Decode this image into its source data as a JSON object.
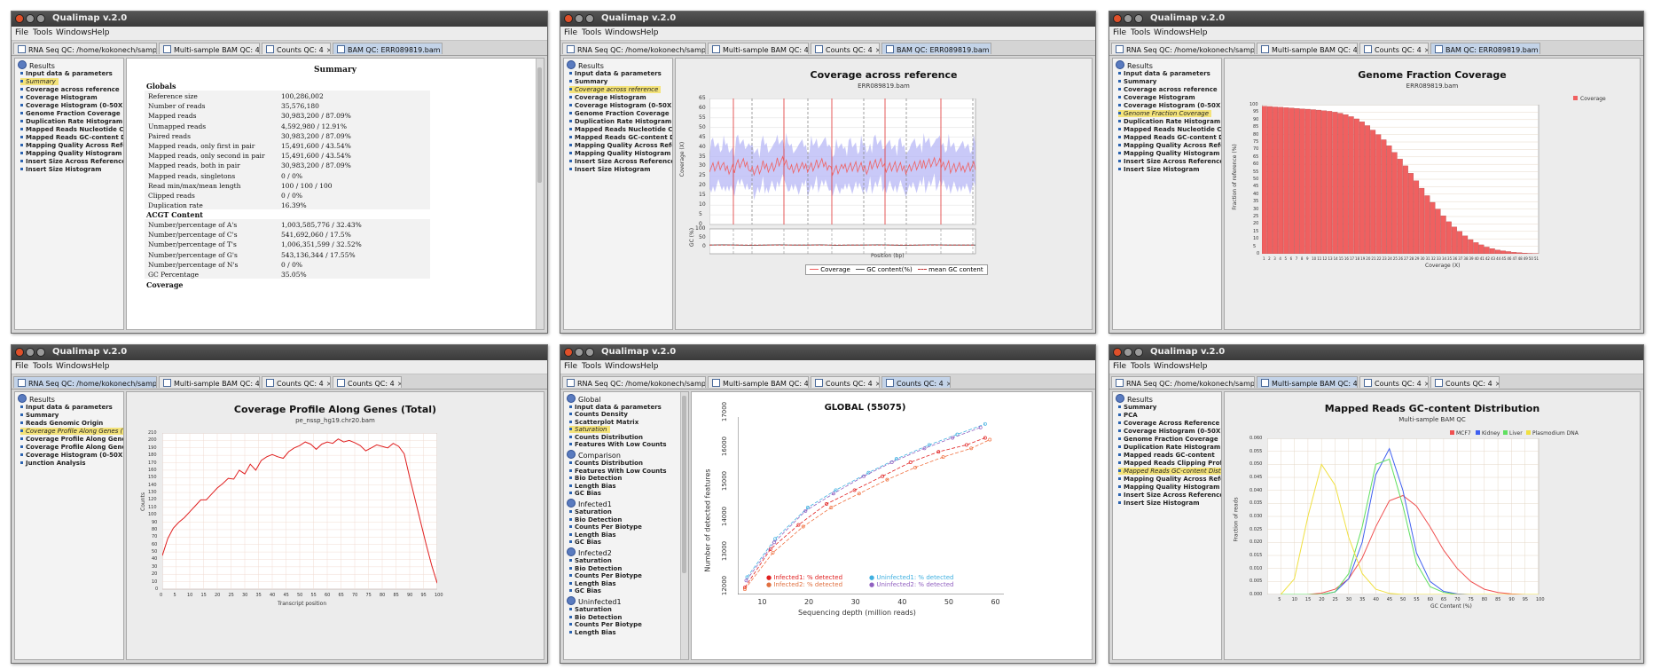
{
  "app_title": "Qualimap v.2.0",
  "menu": [
    "File",
    "Tools",
    "Windows",
    "Help"
  ],
  "colors": {
    "coverage_red": "#f06060",
    "band_blue": "#b7b7f5",
    "highlight": "#f4e37a",
    "mcf7": "#f05050",
    "kidney": "#4060f0",
    "liver": "#60e060",
    "plasmodium": "#f0e040",
    "infected1": "#e02020",
    "infected2": "#f07040",
    "uninfected1": "#40b0e0",
    "uninfected2": "#9060c0"
  },
  "w1": {
    "tabs": [
      "RNA Seq QC: /home/kokonech/sampl...",
      "Multi-sample BAM QC: 4",
      "Counts QC: 4",
      "BAM QC: ERR089819.bam"
    ],
    "sidebar": {
      "heading": "Results",
      "items": [
        "Input data & parameters",
        "Summary",
        "Coverage across reference",
        "Coverage Histogram",
        "Coverage Histogram (0-50X)",
        "Genome Fraction Coverage",
        "Duplication Rate Histogram",
        "Mapped Reads Nucleotide Content",
        "Mapped Reads GC-content Distributi",
        "Mapping Quality Across Reference",
        "Mapping Quality Histogram",
        "Insert Size Across Reference",
        "Insert Size Histogram"
      ]
    },
    "summary": {
      "title": "Summary",
      "globals_label": "Globals",
      "globals": [
        [
          "Reference size",
          "100,286,002"
        ],
        [
          "Number of reads",
          "35,576,180"
        ],
        [
          "Mapped reads",
          "30,983,200 / 87.09%"
        ],
        [
          "Unmapped reads",
          "4,592,980 / 12.91%"
        ],
        [
          "Paired reads",
          "30,983,200 / 87.09%"
        ],
        [
          "Mapped reads, only first in pair",
          "15,491,600 / 43.54%"
        ],
        [
          "Mapped reads, only second in pair",
          "15,491,600 / 43.54%"
        ],
        [
          "Mapped reads, both in pair",
          "30,983,200 / 87.09%"
        ],
        [
          "Mapped reads, singletons",
          "0 / 0%"
        ],
        [
          "Read min/max/mean length",
          "100 / 100 / 100"
        ],
        [
          "Clipped reads",
          "0 / 0%"
        ],
        [
          "Duplication rate",
          "16.39%"
        ]
      ],
      "acgt_label": "ACGT Content",
      "acgt": [
        [
          "Number/percentage of A's",
          "1,003,585,776 / 32.43%"
        ],
        [
          "Number/percentage of C's",
          "541,692,060 / 17.5%"
        ],
        [
          "Number/percentage of T's",
          "1,006,351,599 / 32.52%"
        ],
        [
          "Number/percentage of G's",
          "543,136,344 / 17.55%"
        ],
        [
          "Number/percentage of N's",
          "0 / 0%"
        ],
        [
          "GC Percentage",
          "35.05%"
        ]
      ],
      "coverage_label": "Coverage"
    }
  },
  "w2": {
    "tabs": [
      "RNA Seq QC: /home/kokonech/sampl...",
      "Multi-sample BAM QC: 4",
      "Counts QC: 4",
      "BAM QC: ERR089819.bam"
    ],
    "sidebar": {
      "heading": "Results",
      "items": [
        "Input data & parameters",
        "Summary",
        "Coverage across reference",
        "Coverage Histogram",
        "Coverage Histogram (0-50X)",
        "Genome Fraction Coverage",
        "Duplication Rate Histogram",
        "Mapped Reads Nucleotide Content",
        "Mapped Reads GC-content Distributi",
        "Mapping Quality Across Reference",
        "Mapping Quality Histogram",
        "Insert Size Across Reference",
        "Insert Size Histogram"
      ]
    },
    "chart": {
      "title": "Coverage across reference",
      "subtitle": "ERR089819.bam",
      "ylabel": "Coverage (X)",
      "ylabel2": "GC (%)",
      "xlabel": "Position (bp)",
      "yticks": [
        "65",
        "60",
        "55",
        "50",
        "45",
        "40",
        "35",
        "30",
        "25",
        "20",
        "15",
        "10",
        "5",
        "0"
      ],
      "y2ticks": [
        "100",
        "50",
        "0"
      ],
      "legend": [
        "Coverage",
        "GC content(%)",
        "mean GC content"
      ]
    }
  },
  "w3": {
    "tabs": [
      "RNA Seq QC: /home/kokonech/sampl...",
      "Multi-sample BAM QC: 4",
      "Counts QC: 4",
      "BAM QC: ERR089819.bam"
    ],
    "sidebar": {
      "heading": "Results",
      "items": [
        "Input data & parameters",
        "Summary",
        "Coverage across reference",
        "Coverage Histogram",
        "Coverage Histogram (0-50X)",
        "Genome Fraction Coverage",
        "Duplication Rate Histogram",
        "Mapped Reads Nucleotide Content",
        "Mapped Reads GC-content Distributi",
        "Mapping Quality Across Reference",
        "Mapping Quality Histogram",
        "Insert Size Across Reference",
        "Insert Size Histogram"
      ]
    },
    "chart": {
      "title": "Genome Fraction Coverage",
      "subtitle": "ERR089819.bam",
      "ylabel": "Fraction of reference (%)",
      "xlabel": "Coverage (X)",
      "legend": "Coverage",
      "yticks": [
        "100",
        "95",
        "90",
        "85",
        "80",
        "75",
        "70",
        "65",
        "60",
        "55",
        "50",
        "45",
        "40",
        "35",
        "30",
        "25",
        "20",
        "15",
        "10",
        "5",
        "0"
      ],
      "xticks": [
        "1",
        "2",
        "3",
        "4",
        "5",
        "6",
        "7",
        "8",
        "9",
        "10",
        "11",
        "12",
        "13",
        "14",
        "15",
        "16",
        "17",
        "18",
        "19",
        "20",
        "21",
        "22",
        "23",
        "24",
        "25",
        "26",
        "27",
        "28",
        "29",
        "30",
        "31",
        "32",
        "33",
        "34",
        "35",
        "36",
        "37",
        "38",
        "39",
        "40",
        "41",
        "42",
        "43",
        "44",
        "45",
        "46",
        "47",
        "48",
        "49",
        "50",
        "51"
      ]
    }
  },
  "w4": {
    "tabs": [
      "RNA Seq QC: /home/kokonech/sampl...",
      "Multi-sample BAM QC: 4",
      "Counts QC: 4",
      "Counts QC: 4"
    ],
    "sidebar": {
      "heading": "Results",
      "items": [
        "Input data & parameters",
        "Summary",
        "Reads Genomic Origin",
        "Coverage Profile Along Genes (Total)",
        "Coverage Profile Along Genes (Low)",
        "Coverage Profile Along Genes (High",
        "Coverage Histogram (0-50X)",
        "Junction Analysis"
      ]
    },
    "chart": {
      "title": "Coverage Profile Along Genes (Total)",
      "subtitle": "pe_nssp_hg19.chr20.bam",
      "ylabel": "Counts",
      "xlabel": "Transcript position",
      "yticks": [
        "210",
        "200",
        "190",
        "180",
        "170",
        "160",
        "150",
        "140",
        "130",
        "120",
        "110",
        "100",
        "90",
        "80",
        "70",
        "60",
        "50",
        "40",
        "30",
        "20",
        "10",
        "0"
      ],
      "xticks": [
        "0",
        "5",
        "10",
        "15",
        "20",
        "25",
        "30",
        "35",
        "40",
        "45",
        "50",
        "55",
        "60",
        "65",
        "70",
        "75",
        "80",
        "85",
        "90",
        "95",
        "100"
      ]
    }
  },
  "w5": {
    "tabs": [
      "RNA Seq QC: /home/kokonech/sampl...",
      "Multi-sample BAM QC: 4",
      "Counts QC: 4",
      "Counts QC: 4"
    ],
    "sidebar": {
      "groups": [
        {
          "heading": "Global",
          "items": [
            "Input data & parameters",
            "Counts Density",
            "Scatterplot Matrix",
            "Saturation",
            "Counts Distribution",
            "Features With Low Counts"
          ]
        },
        {
          "heading": "Comparison",
          "items": [
            "Counts Distribution",
            "Features With Low Counts",
            "Bio Detection",
            "Length Bias",
            "GC Bias"
          ]
        },
        {
          "heading": "Infected1",
          "items": [
            "Saturation",
            "Bio Detection",
            "Counts Per Biotype",
            "Length Bias",
            "GC Bias"
          ]
        },
        {
          "heading": "Infected2",
          "items": [
            "Saturation",
            "Bio Detection",
            "Counts Per Biotype",
            "Length Bias",
            "GC Bias"
          ]
        },
        {
          "heading": "Uninfected1",
          "items": [
            "Saturation",
            "Bio Detection",
            "Counts Per Biotype",
            "Length Bias"
          ]
        }
      ]
    },
    "chart": {
      "title": "GLOBAL (55075)",
      "ylabel": "Number of detected features",
      "xlabel": "Sequencing depth (million reads)",
      "yticks": [
        "17000",
        "16000",
        "15000",
        "14000",
        "13000",
        "12000"
      ],
      "xticks": [
        "10",
        "20",
        "30",
        "40",
        "50",
        "60"
      ],
      "legend": [
        "Infected1: % detected",
        "Infected2: % detected",
        "Uninfected1: % detected",
        "Uninfected2: % detected"
      ]
    }
  },
  "w6": {
    "tabs": [
      "RNA Seq QC: /home/kokonech/sampl...",
      "Multi-sample BAM QC: 4",
      "Counts QC: 4",
      "Counts QC: 4"
    ],
    "sidebar": {
      "heading": "Results",
      "items": [
        "Summary",
        "PCA",
        "Coverage Across Reference",
        "Coverage Histogram (0-50X)",
        "Genome Fraction Coverage",
        "Duplication Rate Histogram",
        "Mapped reads GC-content",
        "Mapped Reads Clipping Profile",
        "Mapped Reads GC-content Distributi",
        "Mapping Quality Across Reference",
        "Mapping Quality Histogram",
        "Insert Size Across Reference",
        "Insert Size Histogram"
      ]
    },
    "chart": {
      "title": "Mapped Reads GC-content Distribution",
      "subtitle": "Multi-sample BAM QC",
      "ylabel": "Fraction of reads",
      "xlabel": "GC Content (%)",
      "legend": [
        "MCF7",
        "Kidney",
        "Liver",
        "Plasmodium DNA"
      ],
      "yticks": [
        "0.060",
        "0.055",
        "0.050",
        "0.045",
        "0.040",
        "0.035",
        "0.030",
        "0.025",
        "0.020",
        "0.015",
        "0.010",
        "0.005",
        "0.000"
      ],
      "xticks": [
        "5",
        "10",
        "15",
        "20",
        "25",
        "30",
        "35",
        "40",
        "45",
        "50",
        "55",
        "60",
        "65",
        "70",
        "75",
        "80",
        "85",
        "90",
        "95",
        "100"
      ]
    }
  },
  "chart_data": [
    {
      "type": "line",
      "title": "Coverage across reference",
      "xlabel": "Position (bp)",
      "ylabel": "Coverage (X)",
      "ylim": [
        0,
        65
      ],
      "series": [
        {
          "name": "Coverage",
          "values": [
            30,
            29,
            31,
            28,
            30,
            32,
            29,
            30,
            31,
            28,
            30,
            29,
            31,
            30,
            29,
            30,
            32,
            31,
            29,
            30
          ]
        },
        {
          "name": "GC content(%)",
          "values": [
            35,
            36,
            35,
            34,
            35,
            36,
            35,
            35,
            36,
            34,
            35,
            35,
            36,
            35,
            34,
            35,
            36,
            35,
            35,
            35
          ]
        },
        {
          "name": "mean GC content",
          "values": [
            35,
            35
          ]
        }
      ]
    },
    {
      "type": "bar",
      "title": "Genome Fraction Coverage",
      "xlabel": "Coverage (X)",
      "ylabel": "Fraction of reference (%)",
      "ylim": [
        0,
        100
      ],
      "categories": [
        "1",
        "2",
        "3",
        "4",
        "5",
        "6",
        "7",
        "8",
        "9",
        "10",
        "11",
        "12",
        "13",
        "14",
        "15",
        "16",
        "17",
        "18",
        "19",
        "20",
        "21",
        "22",
        "23",
        "24",
        "25",
        "26",
        "27",
        "28",
        "29",
        "30",
        "31",
        "32",
        "33",
        "34",
        "35",
        "36",
        "37",
        "38",
        "39",
        "40",
        "41",
        "42",
        "43",
        "44",
        "45",
        "46",
        "47",
        "48",
        "49",
        "50",
        "51"
      ],
      "values": [
        99,
        98.8,
        98.5,
        98.3,
        98,
        97.8,
        97.5,
        97.2,
        97,
        96.7,
        96.4,
        96,
        95.6,
        95,
        94.3,
        93.3,
        92,
        90.5,
        88.5,
        86,
        83,
        80,
        76.5,
        72.5,
        68,
        63.5,
        59,
        54,
        49,
        44,
        39,
        34.5,
        30,
        25.5,
        21.5,
        18,
        15,
        12,
        9.5,
        7.5,
        6,
        4.5,
        3.5,
        2.5,
        2,
        1.5,
        1,
        0.8,
        0.5,
        0.3,
        0.2
      ]
    },
    {
      "type": "line",
      "title": "Coverage Profile Along Genes (Total)",
      "xlabel": "Transcript position",
      "ylabel": "Counts",
      "ylim": [
        0,
        210
      ],
      "x": [
        0,
        2,
        4,
        6,
        8,
        10,
        12,
        14,
        16,
        18,
        20,
        22,
        24,
        26,
        28,
        30,
        32,
        34,
        36,
        38,
        40,
        42,
        44,
        46,
        48,
        50,
        52,
        54,
        56,
        58,
        60,
        62,
        64,
        66,
        68,
        70,
        72,
        74,
        76,
        78,
        80,
        82,
        84,
        86,
        88,
        90,
        92,
        94,
        96,
        98,
        100
      ],
      "values": [
        45,
        68,
        82,
        90,
        96,
        104,
        112,
        120,
        120,
        128,
        136,
        142,
        149,
        148,
        160,
        155,
        168,
        160,
        173,
        178,
        181,
        178,
        176,
        185,
        190,
        193,
        198,
        195,
        188,
        195,
        198,
        196,
        202,
        198,
        200,
        197,
        193,
        186,
        190,
        194,
        192,
        190,
        196,
        192,
        182,
        150,
        120,
        90,
        60,
        32,
        8
      ]
    },
    {
      "type": "line",
      "title": "GLOBAL (55075)",
      "xlabel": "Sequencing depth (million reads)",
      "ylabel": "Number of detected features",
      "ylim": [
        11900,
        17000
      ],
      "series": [
        {
          "name": "Infected1: % detected",
          "x": [
            6.5,
            12,
            18,
            24,
            30,
            36,
            42,
            48,
            54,
            58
          ],
          "values": [
            12100,
            13200,
            13900,
            14500,
            14900,
            15300,
            15700,
            16000,
            16200,
            16400
          ]
        },
        {
          "name": "Infected2: % detected",
          "x": [
            6.5,
            12.5,
            19,
            25,
            31,
            37,
            43,
            49,
            55,
            59
          ],
          "values": [
            12050,
            13100,
            13850,
            14400,
            14800,
            15200,
            15550,
            15850,
            16100,
            16350
          ]
        },
        {
          "name": "Uninfected1: % detected",
          "x": [
            7,
            13,
            20,
            26,
            33,
            39,
            46,
            52,
            58
          ],
          "values": [
            12400,
            13500,
            14400,
            14900,
            15400,
            15800,
            16200,
            16500,
            16800
          ]
        },
        {
          "name": "Uninfected2: % detected",
          "x": [
            6.8,
            12.8,
            19.5,
            25.5,
            32,
            38,
            45,
            51,
            57
          ],
          "values": [
            12300,
            13400,
            14300,
            14800,
            15300,
            15700,
            16100,
            16400,
            16700
          ]
        }
      ]
    },
    {
      "type": "line",
      "title": "Mapped Reads GC-content Distribution",
      "xlabel": "GC Content (%)",
      "ylabel": "Fraction of reads",
      "ylim": [
        0,
        0.06
      ],
      "x": [
        5,
        10,
        15,
        20,
        25,
        30,
        35,
        40,
        45,
        50,
        55,
        60,
        65,
        70,
        75,
        80,
        85,
        90,
        95,
        100
      ],
      "series": [
        {
          "name": "MCF7",
          "values": [
            0,
            0,
            0,
            0.0005,
            0.002,
            0.006,
            0.014,
            0.026,
            0.036,
            0.038,
            0.034,
            0.026,
            0.017,
            0.01,
            0.005,
            0.002,
            0.0008,
            0.0002,
            0,
            0
          ]
        },
        {
          "name": "Kidney",
          "values": [
            0,
            0,
            0,
            0,
            0.001,
            0.006,
            0.02,
            0.046,
            0.056,
            0.04,
            0.016,
            0.005,
            0.0012,
            0.0002,
            0,
            0,
            0,
            0,
            0,
            0
          ]
        },
        {
          "name": "Liver",
          "values": [
            0,
            0,
            0,
            0,
            0.001,
            0.008,
            0.026,
            0.05,
            0.052,
            0.034,
            0.012,
            0.003,
            0.0008,
            0,
            0,
            0,
            0,
            0,
            0,
            0
          ]
        },
        {
          "name": "Plasmodium DNA",
          "values": [
            0,
            0.006,
            0.03,
            0.05,
            0.042,
            0.022,
            0.008,
            0.002,
            0.0004,
            0,
            0,
            0,
            0,
            0,
            0,
            0,
            0,
            0,
            0,
            0
          ]
        }
      ]
    }
  ]
}
